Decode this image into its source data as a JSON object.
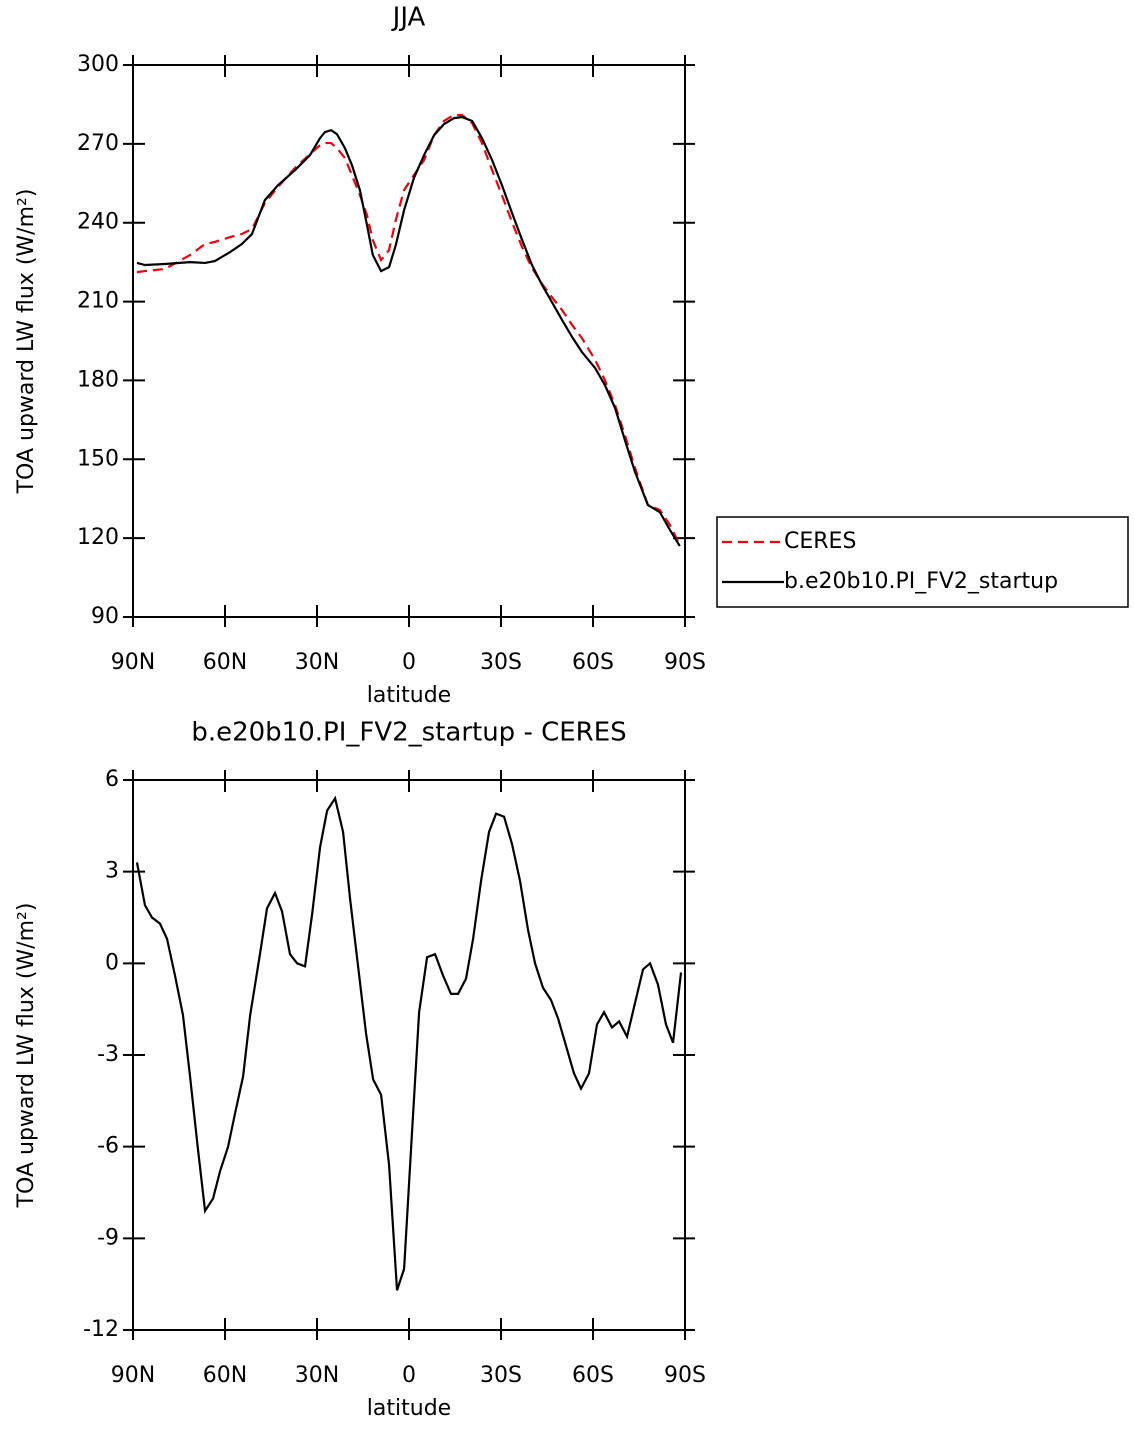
{
  "chart_data": [
    {
      "type": "line",
      "title": "JJA",
      "xlabel": "latitude",
      "ylabel": "TOA upward LW flux (W/m²)",
      "x": [
        88.7,
        86.1,
        79.6,
        71.4,
        66.5,
        63.3,
        58.4,
        54.5,
        51.2,
        47,
        42.7,
        37.2,
        32.3,
        29,
        27.4,
        25.4,
        23.5,
        20.9,
        18.6,
        16,
        13.7,
        11.8,
        9.1,
        6.5,
        4.3,
        1.6,
        -1.6,
        -4.9,
        -8.2,
        -11.4,
        -14.7,
        -17.3,
        -20.6,
        -23.8,
        -27.1,
        -30.3,
        -33.6,
        -36.9,
        -40.1,
        -43.4,
        -46.6,
        -49.9,
        -53.2,
        -56.4,
        -60.7,
        -63.9,
        -67.2,
        -70.4,
        -73.7,
        -77.9,
        -81.8,
        -85.1,
        -88.3
      ],
      "series": [
        {
          "name": "CERES",
          "color": "#e8000b",
          "dashed": true,
          "values": [
            221.2,
            221.6,
            222.4,
            227.7,
            231.9,
            232.7,
            234.5,
            235.7,
            237.6,
            247.5,
            253.6,
            260.8,
            266.1,
            269.5,
            270.3,
            270.3,
            268.4,
            264.6,
            258.1,
            250.5,
            242.9,
            233.4,
            225.8,
            229.6,
            241,
            252.4,
            258.1,
            263.8,
            273.3,
            278.7,
            281,
            281,
            277.9,
            270.3,
            260,
            250.5,
            240.2,
            230.7,
            222.8,
            216.7,
            211.7,
            206.8,
            201.1,
            196.1,
            187.8,
            180.1,
            170.6,
            159.2,
            146.7,
            132.6,
            130.7,
            125,
            117.4
          ]
        },
        {
          "name": "b.e20b10.PI_FV2_startup",
          "color": "#000000",
          "dashed": false,
          "values": [
            224.7,
            223.9,
            224.3,
            225,
            224.7,
            225.4,
            228.8,
            231.9,
            235.7,
            248.6,
            254.3,
            260,
            265.7,
            272.2,
            274.5,
            275.2,
            273.7,
            268.4,
            261.9,
            252.4,
            239.1,
            227.7,
            221.6,
            223.1,
            231.5,
            244.8,
            257,
            265.7,
            273.3,
            277.5,
            279.8,
            280.2,
            278.7,
            272.2,
            263.8,
            254.3,
            243.7,
            233.4,
            223.9,
            216.3,
            209.8,
            203,
            196.5,
            190.8,
            184.7,
            178.2,
            169.5,
            157.3,
            145.2,
            132.6,
            129.9,
            123.1,
            117
          ]
        }
      ],
      "xlim": [
        90,
        -90
      ],
      "xticks": [
        {
          "value": 90,
          "label": "90N"
        },
        {
          "value": 60,
          "label": "60N"
        },
        {
          "value": 30,
          "label": "30N"
        },
        0,
        {
          "value": -30,
          "label": "30S"
        },
        {
          "value": -60,
          "label": "60S"
        },
        {
          "value": -90,
          "label": "90S"
        }
      ],
      "ylim": [
        90,
        300
      ],
      "yticks": [
        90,
        120,
        150,
        180,
        210,
        240,
        270,
        300
      ],
      "legend": "outside-right"
    },
    {
      "type": "line",
      "title": "b.e20b10.PI_FV2_startup - CERES",
      "xlabel": "latitude",
      "ylabel": "TOA upward LW flux (W/m²)",
      "x": [
        88.7,
        86.1,
        83.8,
        81.2,
        78.9,
        76.3,
        73.7,
        71.4,
        68.8,
        66.5,
        63.9,
        61.6,
        59,
        56.7,
        54.1,
        51.8,
        48.6,
        46.3,
        43.7,
        41.4,
        38.8,
        36.5,
        33.9,
        31.6,
        29,
        26.7,
        24.1,
        21.5,
        19.2,
        16.6,
        14,
        11.7,
        9.1,
        6.5,
        3.9,
        1.6,
        -1,
        -3.3,
        -5.9,
        -8.5,
        -11.1,
        -13.7,
        -16,
        -18.6,
        -20.9,
        -23.5,
        -26.1,
        -28.4,
        -31,
        -33.6,
        -36.2,
        -38.8,
        -41.1,
        -43.7,
        -46.3,
        -48.6,
        -51.2,
        -53.8,
        -56.1,
        -58.7,
        -61.3,
        -63.6,
        -66.2,
        -68.5,
        -71.1,
        -73.7,
        -76.3,
        -78.6,
        -81.2,
        -83.8,
        -86.1,
        -88.7
      ],
      "series": [
        {
          "name": "b.e20b10.PI_FV2_startup - CERES",
          "color": "#000000",
          "dashed": false,
          "values": [
            3.3,
            1.9,
            1.5,
            1.3,
            0.8,
            -0.4,
            -1.7,
            -3.7,
            -6.1,
            -8.1,
            -7.7,
            -6.8,
            -6,
            -4.9,
            -3.7,
            -1.7,
            0.3,
            1.8,
            2.3,
            1.7,
            0.3,
            0,
            -0.1,
            1.6,
            3.8,
            5,
            5.4,
            4.3,
            2.1,
            -0.1,
            -2.3,
            -3.8,
            -4.3,
            -6.6,
            -10.7,
            -10,
            -5.5,
            -1.6,
            0.2,
            0.3,
            -0.4,
            -1,
            -1,
            -0.5,
            0.8,
            2.7,
            4.3,
            4.9,
            4.8,
            3.9,
            2.7,
            1.1,
            0,
            -0.8,
            -1.2,
            -1.8,
            -2.7,
            -3.6,
            -4.1,
            -3.6,
            -2,
            -1.6,
            -2.1,
            -1.9,
            -2.4,
            -1.3,
            -0.2,
            0,
            -0.7,
            -2,
            -2.6,
            -0.3
          ]
        }
      ],
      "xlim": [
        90,
        -90
      ],
      "xticks": [
        {
          "value": 90,
          "label": "90N"
        },
        {
          "value": 60,
          "label": "60N"
        },
        {
          "value": 30,
          "label": "30N"
        },
        0,
        {
          "value": -30,
          "label": "30S"
        },
        {
          "value": -60,
          "label": "60S"
        },
        {
          "value": -90,
          "label": "90S"
        }
      ],
      "ylim": [
        -12,
        6
      ],
      "yticks": [
        -12,
        -9,
        -6,
        -3,
        0,
        3,
        6
      ]
    }
  ]
}
